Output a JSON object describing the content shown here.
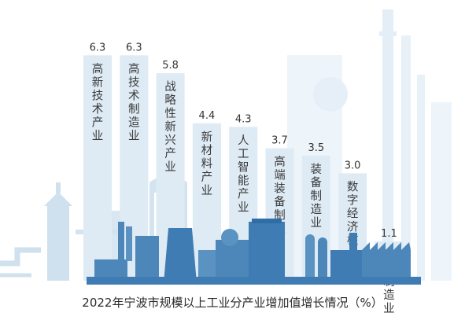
{
  "caption": "2022年宁波市规模以上工业分产业增加值增长情况（%）",
  "chart_data": {
    "type": "bar",
    "title": "2022年宁波市规模以上工业分产业增加值增长情况（%）",
    "ylabel": "%",
    "ylim": [
      0,
      7
    ],
    "grid": false,
    "legend": "none",
    "categories": [
      "高新技术产业",
      "高技术制造业",
      "战略性新兴产业",
      "新材料产业",
      "人工智能产业",
      "高端装备制造业",
      "装备制造业",
      "数字经济核心产业",
      "时尚制造业"
    ],
    "values": [
      6.3,
      6.3,
      5.8,
      4.4,
      4.3,
      3.7,
      3.5,
      3.0,
      1.1
    ]
  },
  "colors": {
    "bar": "#deebf4",
    "skyline_light": "#cfe1ee",
    "skyline_mid": "#a9c8de",
    "skyline_dark": "#3f7cb3",
    "text": "#333333"
  }
}
